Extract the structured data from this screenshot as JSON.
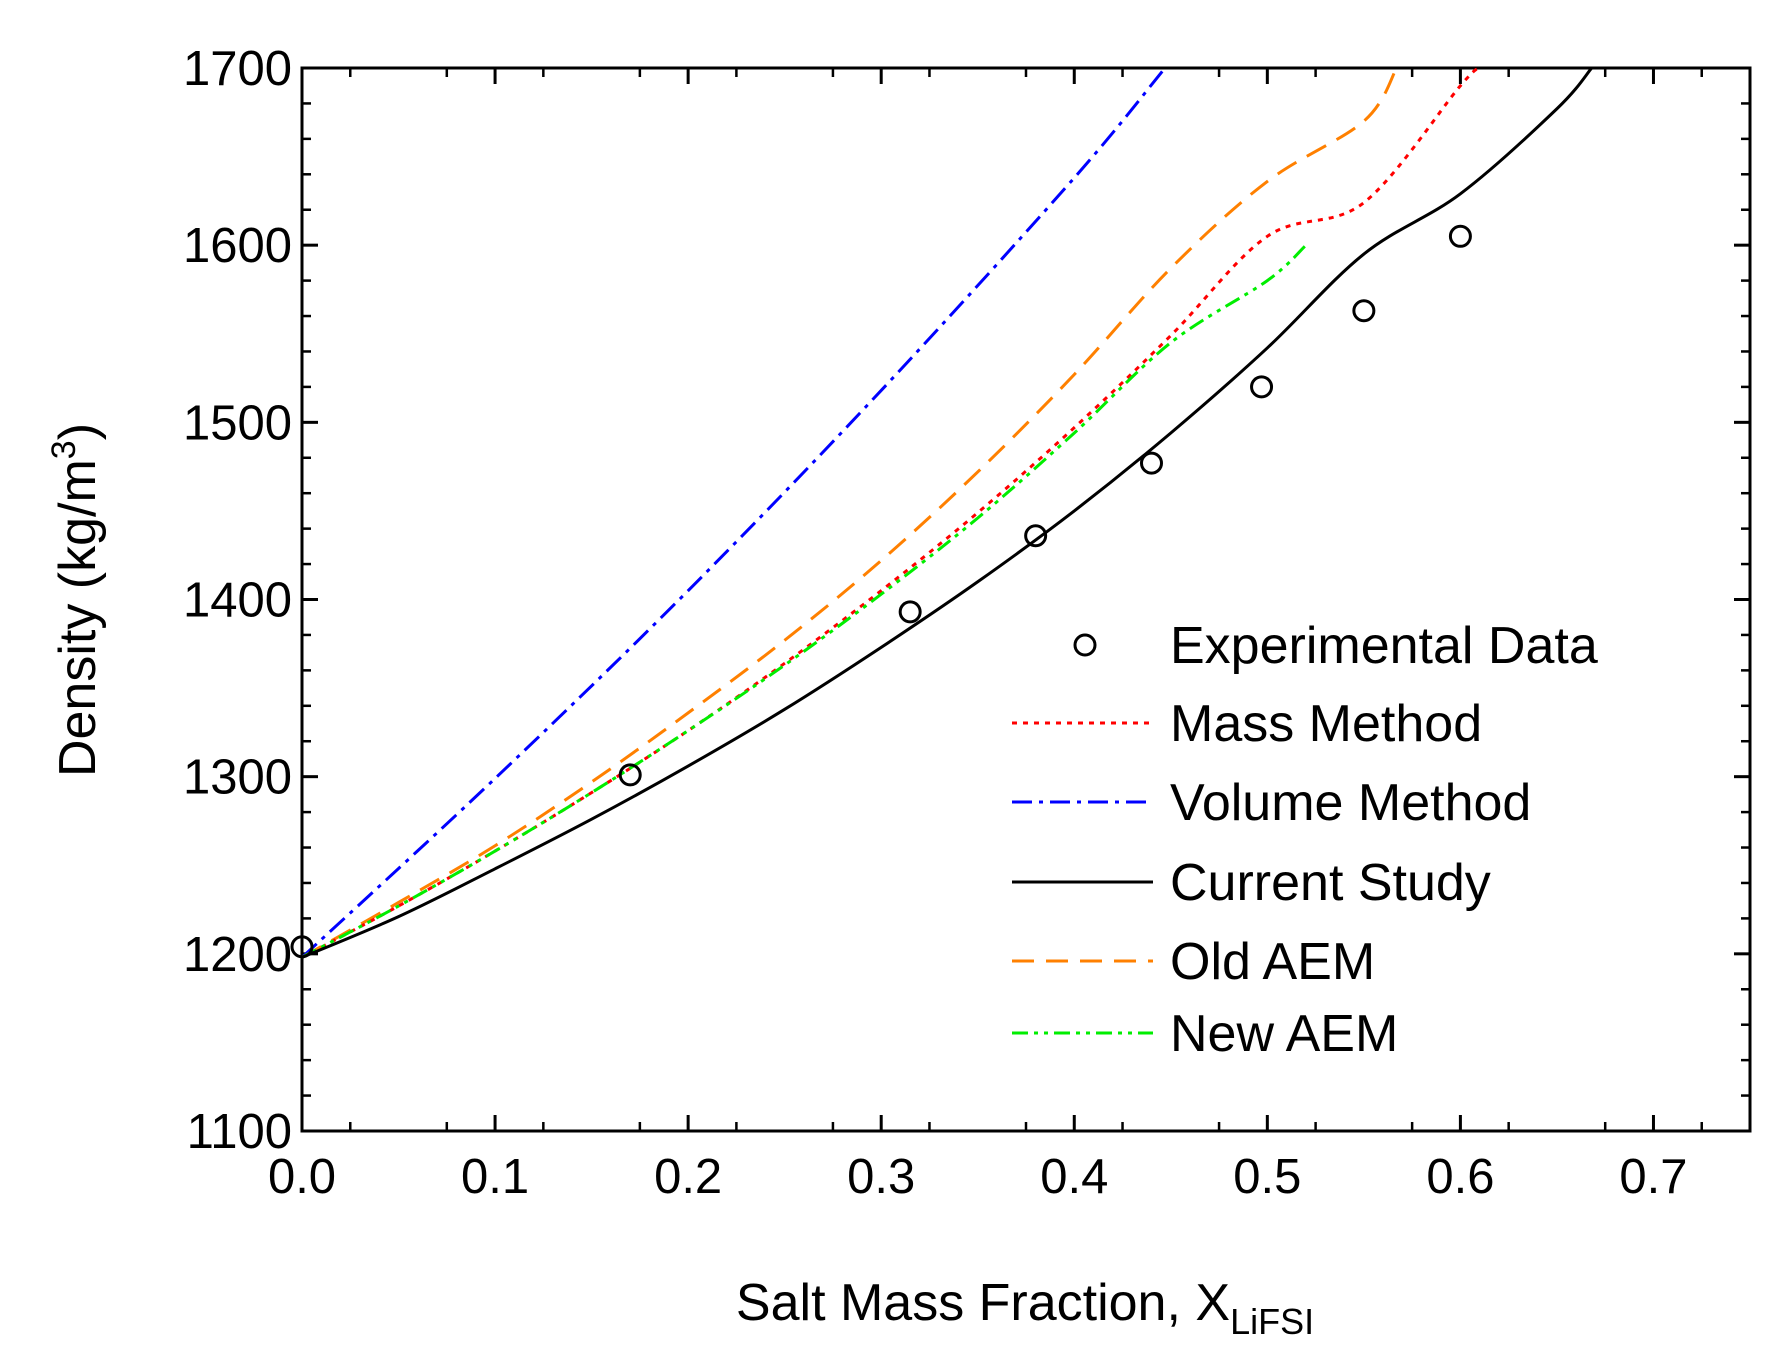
{
  "chart_data": {
    "type": "line",
    "xlabel": "Salt Mass Fraction, X",
    "xlabel_sub": "LiFSI",
    "ylabel": "Density (kg/m",
    "ylabel_sup": "3",
    "ylabel_end": ")",
    "xlim": [
      0.0,
      0.75
    ],
    "ylim": [
      1100,
      1700
    ],
    "xticks": [
      0.0,
      0.1,
      0.2,
      0.3,
      0.4,
      0.5,
      0.6,
      0.7
    ],
    "xtick_labels": [
      "0.0",
      "0.1",
      "0.2",
      "0.3",
      "0.4",
      "0.5",
      "0.6",
      "0.7"
    ],
    "yticks": [
      1100,
      1200,
      1300,
      1400,
      1500,
      1600,
      1700
    ],
    "ytick_labels": [
      "1100",
      "1200",
      "1300",
      "1400",
      "1500",
      "1600",
      "1700"
    ],
    "grid": false,
    "legend_position": "bottom-right",
    "series": [
      {
        "name": "Experimental Data",
        "kind": "scatter",
        "color": "#000000",
        "x": [
          0.0,
          0.17,
          0.315,
          0.38,
          0.44,
          0.497,
          0.55,
          0.6
        ],
        "y": [
          1204,
          1301,
          1393,
          1436,
          1477,
          1520,
          1563,
          1605
        ]
      },
      {
        "name": "Mass Method",
        "kind": "line",
        "style": "dotted",
        "color": "#ff0000",
        "x": [
          0.0,
          0.05,
          0.1,
          0.15,
          0.2,
          0.25,
          0.3,
          0.35,
          0.4,
          0.45,
          0.5,
          0.55,
          0.6,
          0.61
        ],
        "y": [
          1198,
          1227,
          1258,
          1291,
          1326,
          1364,
          1405,
          1449,
          1497,
          1549,
          1605,
          1624,
          1690,
          1700
        ]
      },
      {
        "name": "Volume Method",
        "kind": "line",
        "style": "dashdot",
        "color": "#0000ff",
        "x": [
          0.0,
          0.1,
          0.2,
          0.3,
          0.4,
          0.447
        ],
        "y": [
          1198,
          1299,
          1405,
          1518,
          1638,
          1700
        ]
      },
      {
        "name": "Current Study",
        "kind": "line",
        "style": "solid",
        "color": "#000000",
        "x": [
          0.0,
          0.05,
          0.1,
          0.15,
          0.2,
          0.25,
          0.3,
          0.35,
          0.4,
          0.45,
          0.5,
          0.55,
          0.6,
          0.65,
          0.668
        ],
        "y": [
          1198,
          1221,
          1248,
          1276,
          1306,
          1338,
          1373,
          1410,
          1450,
          1494,
          1542,
          1595,
          1629,
          1677,
          1700
        ]
      },
      {
        "name": "Old AEM",
        "kind": "line",
        "style": "dashed",
        "color": "#ff8000",
        "x": [
          0.0,
          0.05,
          0.1,
          0.15,
          0.2,
          0.25,
          0.3,
          0.35,
          0.4,
          0.45,
          0.5,
          0.55,
          0.567
        ],
        "y": [
          1198,
          1229,
          1261,
          1297,
          1336,
          1377,
          1422,
          1472,
          1527,
          1587,
          1636,
          1670,
          1700
        ]
      },
      {
        "name": "New AEM",
        "kind": "line",
        "style": "dashdotdot",
        "color": "#00ee00",
        "x": [
          0.0,
          0.05,
          0.1,
          0.15,
          0.2,
          0.25,
          0.3,
          0.35,
          0.4,
          0.45,
          0.5,
          0.52
        ],
        "y": [
          1198,
          1227,
          1258,
          1291,
          1326,
          1363,
          1403,
          1446,
          1494,
          1545,
          1580,
          1600
        ]
      }
    ]
  }
}
